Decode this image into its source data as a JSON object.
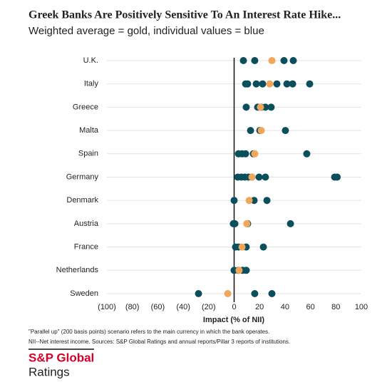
{
  "chart_data": {
    "type": "dot",
    "title": "Greek Banks Are Positively Sensitive To An Interest Rate Hike...",
    "subtitle": "Weighted average = gold, individual values = blue",
    "x_label": "Impact (% of NII)",
    "categories": [
      "U.K.",
      "Italy",
      "Greece",
      "Malta",
      "Spain",
      "Germany",
      "Denmark",
      "Austria",
      "France",
      "Netherlands",
      "Sweden"
    ],
    "individual_values": [
      [
        7.3,
        16.2,
        39.2,
        46.5
      ],
      [
        9,
        10.6,
        17.4,
        22.4,
        33.6,
        41.5,
        46,
        59.4
      ],
      [
        9.5,
        18.5,
        21.3,
        24.6,
        29.1
      ],
      [
        12.9,
        20.2,
        40.3
      ],
      [
        3.4,
        6.2,
        9,
        15.1,
        57.1
      ],
      [
        2.8,
        5.6,
        8.4,
        11.2,
        14,
        19.6,
        24.6,
        79,
        81
      ],
      [
        0,
        15.7,
        25.8
      ],
      [
        -0.6,
        0.6,
        10.6,
        44.3
      ],
      [
        1.1,
        3.4,
        9.5,
        23
      ],
      [
        0,
        3.4,
        6.7,
        9.5
      ],
      [
        -28,
        16.2,
        29.7
      ]
    ],
    "individual_color": "#0b4f5c",
    "weighted_average": [
      29.7,
      28,
      20.7,
      21.3,
      16.2,
      14,
      11.8,
      10,
      6.2,
      3.9,
      -5
    ],
    "weighted_average_color": "#f2a65a",
    "xlim": [
      -100,
      100
    ],
    "xticks": [
      {
        "value": -100,
        "label": "(100)"
      },
      {
        "value": -80,
        "label": "(80)"
      },
      {
        "value": -60,
        "label": "(60)"
      },
      {
        "value": -40,
        "label": "(40)"
      },
      {
        "value": -20,
        "label": "(20)"
      },
      0,
      20,
      40,
      60,
      80,
      100
    ],
    "grid": true,
    "notes": [
      "\"Parallel up\" (200 basis points) scenario refers to the main currency in which the bank operates.",
      "NII--Net interest income. Sources: S&P Global Ratings and annual reports/Pillar 3 reports of institutions."
    ],
    "logo": [
      "S&P Global",
      "Ratings"
    ]
  }
}
